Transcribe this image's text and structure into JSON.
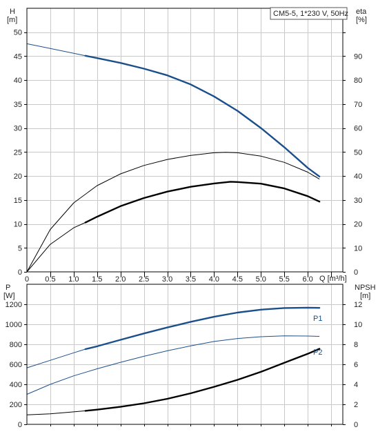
{
  "chart_data": [
    {
      "type": "line",
      "panel": "top",
      "legend": "CM5-5, 1*230 V, 50Hz",
      "legend_position": "top-right",
      "grid": true,
      "y_left": {
        "label": "H",
        "unit": "[m]",
        "range": [
          0,
          55
        ],
        "ticks": [
          "0",
          "5",
          "10",
          "15",
          "20",
          "25",
          "30",
          "35",
          "40",
          "45",
          "50"
        ]
      },
      "y_right": {
        "label": "eta",
        "unit": "[%]",
        "range": [
          0,
          110
        ],
        "ticks": [
          "0",
          "10",
          "20",
          "30",
          "40",
          "50",
          "60",
          "70",
          "80",
          "90"
        ]
      },
      "x": {
        "label": "Q [m³/h]",
        "range": [
          0,
          6.75
        ],
        "ticks": [
          "0",
          "0.5",
          "1.0",
          "1.5",
          "2.0",
          "2.5",
          "3.0",
          "3.5",
          "4.0",
          "4.5",
          "5.0",
          "5.5",
          "6.0"
        ]
      },
      "series": [
        {
          "axis": "left",
          "color": "#1a4f8c",
          "thick_from": 1.25,
          "points": [
            [
              0,
              47.6
            ],
            [
              0.5,
              46.6
            ],
            [
              1.0,
              45.6
            ],
            [
              1.25,
              45.1
            ],
            [
              1.5,
              44.6
            ],
            [
              2.0,
              43.6
            ],
            [
              2.5,
              42.4
            ],
            [
              3.0,
              41.0
            ],
            [
              3.5,
              39.1
            ],
            [
              4.0,
              36.6
            ],
            [
              4.5,
              33.6
            ],
            [
              5.0,
              30.0
            ],
            [
              5.5,
              26.0
            ],
            [
              6.0,
              21.7
            ],
            [
              6.25,
              19.9
            ]
          ]
        },
        {
          "axis": "right",
          "color": "#000000",
          "thick_from": 99,
          "points": [
            [
              0,
              0
            ],
            [
              0.5,
              17.7
            ],
            [
              1.0,
              28.8
            ],
            [
              1.5,
              36.0
            ],
            [
              2.0,
              40.9
            ],
            [
              2.5,
              44.4
            ],
            [
              3.0,
              46.9
            ],
            [
              3.5,
              48.6
            ],
            [
              4.0,
              49.7
            ],
            [
              4.25,
              49.9
            ],
            [
              4.5,
              49.7
            ],
            [
              5.0,
              48.3
            ],
            [
              5.5,
              45.7
            ],
            [
              6.0,
              41.6
            ],
            [
              6.25,
              38.7
            ]
          ]
        },
        {
          "axis": "right",
          "color": "#000000",
          "thick_from": 1.25,
          "points": [
            [
              0,
              0
            ],
            [
              0.5,
              11.5
            ],
            [
              1.0,
              18.4
            ],
            [
              1.25,
              20.6
            ],
            [
              1.5,
              23.0
            ],
            [
              2.0,
              27.4
            ],
            [
              2.5,
              30.8
            ],
            [
              3.0,
              33.5
            ],
            [
              3.5,
              35.5
            ],
            [
              4.0,
              36.9
            ],
            [
              4.35,
              37.6
            ],
            [
              4.5,
              37.5
            ],
            [
              5.0,
              36.8
            ],
            [
              5.5,
              34.8
            ],
            [
              6.0,
              31.6
            ],
            [
              6.25,
              29.3
            ]
          ]
        }
      ]
    },
    {
      "type": "line",
      "panel": "bottom",
      "grid": true,
      "y_left": {
        "label": "P",
        "unit": "[W]",
        "range": [
          0,
          1400
        ],
        "ticks": [
          "0",
          "200",
          "400",
          "600",
          "800",
          "1000",
          "1200"
        ]
      },
      "y_right": {
        "label": "NPSH",
        "unit": "[m]",
        "range": [
          0,
          14
        ],
        "ticks": [
          "0",
          "2",
          "4",
          "6",
          "8",
          "10",
          "12"
        ]
      },
      "x": {
        "range": [
          0,
          6.75
        ]
      },
      "series": [
        {
          "name": "P1",
          "axis": "left",
          "color": "#1a4f8c",
          "thick_from": 1.25,
          "points": [
            [
              0,
              565
            ],
            [
              0.5,
              640
            ],
            [
              1.0,
              715
            ],
            [
              1.25,
              752
            ],
            [
              1.5,
              780
            ],
            [
              2.0,
              845
            ],
            [
              2.5,
              908
            ],
            [
              3.0,
              968
            ],
            [
              3.5,
              1025
            ],
            [
              4.0,
              1075
            ],
            [
              4.5,
              1117
            ],
            [
              5.0,
              1146
            ],
            [
              5.5,
              1163
            ],
            [
              6.0,
              1166
            ],
            [
              6.25,
              1164
            ]
          ]
        },
        {
          "name": "P2",
          "axis": "left",
          "color": "#1a4f8c",
          "thick_from": 99,
          "points": [
            [
              0,
              300
            ],
            [
              0.5,
              400
            ],
            [
              1.0,
              485
            ],
            [
              1.5,
              555
            ],
            [
              2.0,
              620
            ],
            [
              2.5,
              680
            ],
            [
              3.0,
              735
            ],
            [
              3.5,
              785
            ],
            [
              4.0,
              828
            ],
            [
              4.5,
              858
            ],
            [
              5.0,
              876
            ],
            [
              5.5,
              884
            ],
            [
              6.0,
              883
            ],
            [
              6.25,
              879
            ]
          ]
        },
        {
          "axis": "right",
          "color": "#000000",
          "thick_from": 1.25,
          "points": [
            [
              0,
              0.95
            ],
            [
              0.5,
              1.05
            ],
            [
              1.0,
              1.25
            ],
            [
              1.25,
              1.35
            ],
            [
              1.5,
              1.47
            ],
            [
              2.0,
              1.75
            ],
            [
              2.5,
              2.1
            ],
            [
              3.0,
              2.55
            ],
            [
              3.5,
              3.1
            ],
            [
              4.0,
              3.75
            ],
            [
              4.5,
              4.45
            ],
            [
              5.0,
              5.25
            ],
            [
              5.5,
              6.15
            ],
            [
              6.0,
              7.05
            ],
            [
              6.25,
              7.55
            ]
          ]
        }
      ]
    }
  ]
}
